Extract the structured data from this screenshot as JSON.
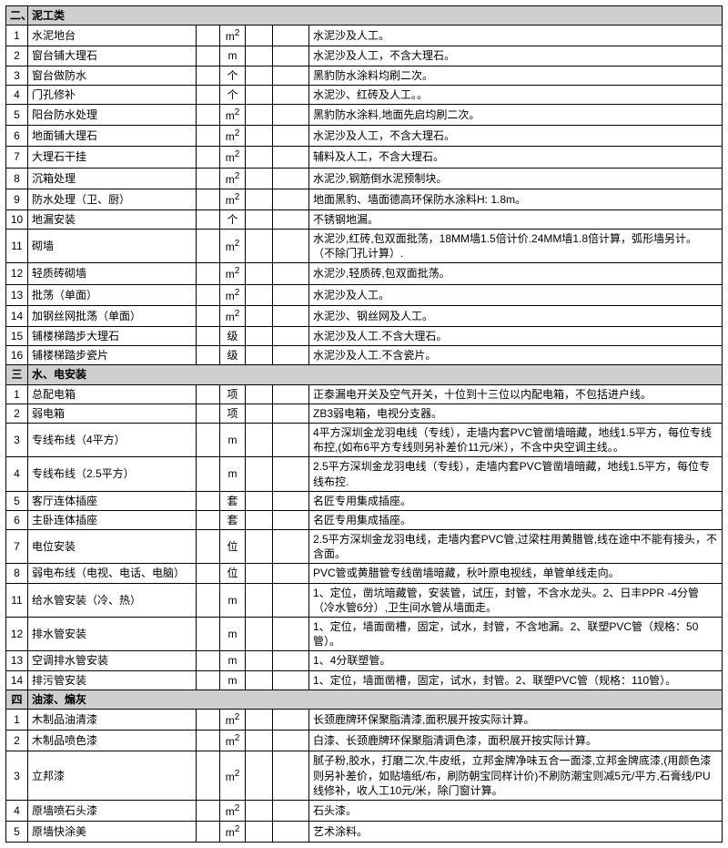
{
  "sections": [
    {
      "no": "二、",
      "title": "泥工类",
      "rows": [
        {
          "n": "1",
          "name": "水泥地台",
          "u": "m",
          "sup": "2",
          "desc": "水泥沙及人工。"
        },
        {
          "n": "2",
          "name": "窗台铺大理石",
          "u": "m",
          "sup": "",
          "desc": "水泥沙及人工，不含大理石。"
        },
        {
          "n": "3",
          "name": "窗台做防水",
          "u": "个",
          "sup": "",
          "desc": "黑豹防水涂料均刷二次。"
        },
        {
          "n": "4",
          "name": "门孔修补",
          "u": "个",
          "sup": "",
          "desc": "水泥沙、红砖及人工。。"
        },
        {
          "n": "5",
          "name": "阳台防水处理",
          "u": "m",
          "sup": "2",
          "desc": "黑豹防水涂料,地面先启均刷二次。"
        },
        {
          "n": "6",
          "name": "地面铺大理石",
          "u": "m",
          "sup": "2",
          "desc": "水泥沙及人工，不含大理石。"
        },
        {
          "n": "7",
          "name": "大理石干挂",
          "u": "m",
          "sup": "2",
          "desc": "辅料及人工，不含大理石。"
        },
        {
          "n": "8",
          "name": "沉箱处理",
          "u": "m",
          "sup": "2",
          "desc": "水泥沙,钢筋倒水泥预制块。"
        },
        {
          "n": "9",
          "name": "防水处理（卫、厨）",
          "u": "m",
          "sup": "2",
          "desc": "地面黑豹、墙面德高环保防水涂料H: 1.8m。"
        },
        {
          "n": "10",
          "name": "地漏安装",
          "u": "个",
          "sup": "",
          "desc": "不锈钢地漏。"
        },
        {
          "n": "11",
          "name": "砌墙",
          "u": "m",
          "sup": "2",
          "desc": "水泥沙,红砖,包双面批荡，18MM墙1.5倍计价.24MM墙1.8倍计算，弧形墙另计。 （不除门孔计算）."
        },
        {
          "n": "12",
          "name": "轻质砖砌墙",
          "u": "m",
          "sup": "2",
          "desc": "水泥沙,轻质砖,包双面批荡。"
        },
        {
          "n": "13",
          "name": "批荡（单面）",
          "u": "m",
          "sup": "2",
          "desc": "水泥沙及人工。"
        },
        {
          "n": "14",
          "name": "加钢丝网批荡（单面）",
          "u": "m",
          "sup": "2",
          "desc": "水泥沙、钢丝网及人工。"
        },
        {
          "n": "15",
          "name": "铺楼梯踏步大理石",
          "u": "级",
          "sup": "",
          "desc": "水泥沙及人工.不含大理石。"
        },
        {
          "n": "16",
          "name": "铺楼梯踏步瓷片",
          "u": "级",
          "sup": "",
          "desc": "水泥沙及人工.不含瓷片。"
        }
      ]
    },
    {
      "no": "三",
      "title": "水、电安装",
      "rows": [
        {
          "n": "1",
          "name": "总配电箱",
          "u": "项",
          "sup": "",
          "desc": "正泰漏电开关及空气开关，十位到十三位以内配电箱，不包括进户线。"
        },
        {
          "n": "2",
          "name": "弱电箱",
          "u": "项",
          "sup": "",
          "desc": "ZB3弱电箱，电视分支器。"
        },
        {
          "n": "3",
          "name": "专线布线（4平方）",
          "u": "m",
          "sup": "",
          "desc": "4平方深圳金龙羽电线（专线），走墙内套PVC管凿墙暗藏，地线1.5平方，每位专线布控,(如布6平方专线则另补差价11元/米），不含中央空调主线。。",
          "tall": true
        },
        {
          "n": "4",
          "name": "专线布线（2.5平方）",
          "u": "m",
          "sup": "",
          "desc": "2.5平方深圳金龙羽电线（专线），走墙内套PVC管凿墙暗藏，地线1.5平方，每位专线布控."
        },
        {
          "n": "5",
          "name": "客厅连体插座",
          "u": "套",
          "sup": "",
          "desc": "名匠专用集成插座。"
        },
        {
          "n": "6",
          "name": "主卧连体插座",
          "u": "套",
          "sup": "",
          "desc": "名匠专用集成插座。"
        },
        {
          "n": "7",
          "name": "电位安装",
          "u": "位",
          "sup": "",
          "desc": "2.5平方深圳金龙羽电线，走墙内套PVC管,过梁柱用黄腊管,线在途中不能有接头，不含面。"
        },
        {
          "n": "8",
          "name": "弱电布线（电视、电话、电脑）",
          "u": "位",
          "sup": "",
          "desc": "PVC管或黄腊管专线凿墙暗藏，秋叶原电视线，单管单线走向。"
        },
        {
          "n": "11",
          "name": "给水管安装（冷、热）",
          "u": "m",
          "sup": "",
          "desc": "1、定位，凿坑暗藏管，安装管，试压，封管，不含水龙头。2、日丰PPR -4分管（冷水管6分）,卫生间水管从墙面走。",
          "tall": true
        },
        {
          "n": "12",
          "name": "排水管安装",
          "u": "m",
          "sup": "",
          "desc": "1、定位，墙面凿槽，固定，试水，封管，不含地漏。2、联塑PVC管（规格：50管）。"
        },
        {
          "n": "13",
          "name": "空调排水管安装",
          "u": "m",
          "sup": "",
          "desc": "1、4分联塑管。"
        },
        {
          "n": "14",
          "name": "排污管安装",
          "u": "m",
          "sup": "",
          "desc": "1、定位，墙面凿槽，固定，试水，封管。2、联塑PVC管（规格：110管）。"
        }
      ]
    },
    {
      "no": "四",
      "title": "油漆、煽灰",
      "rows": [
        {
          "n": "1",
          "name": "木制品油清漆",
          "u": "m",
          "sup": "2",
          "desc": "长颈鹿牌环保聚脂清漆,面积展开按实际计算。"
        },
        {
          "n": "2",
          "name": "木制品喷色漆",
          "u": "m",
          "sup": "2",
          "desc": "白漆、长颈鹿牌环保聚脂清调色漆，面积展开按实际计算。"
        },
        {
          "n": "3",
          "name": "立邦漆",
          "u": "m",
          "sup": "2",
          "desc": "腻子粉,胶水，打磨二次,牛皮纸，立邦金牌净味五合一面漆,立邦金牌底漆,(用颜色漆则另补差价，如贴墙纸/布，刷防朝宝同样计价)不刷防潮宝则减5元/平方,石膏线/PU线修补，收人工10元/米，除门窗计算。",
          "tall3": true
        },
        {
          "n": "4",
          "name": "原墙喷石头漆",
          "u": "m",
          "sup": "2",
          "desc": "石头漆。"
        },
        {
          "n": "5",
          "name": "原墙快涂美",
          "u": "m",
          "sup": "2",
          "desc": "艺术涂料。"
        }
      ]
    }
  ]
}
